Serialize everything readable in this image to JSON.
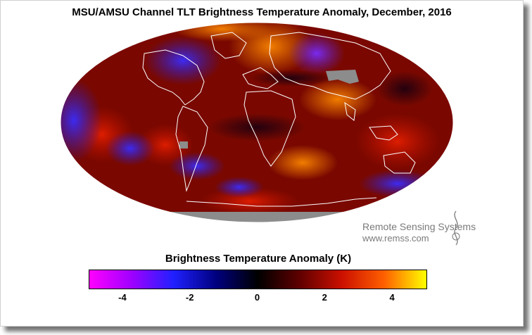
{
  "title": "MSU/AMSU Channel TLT Brightness Temperature Anomaly, December, 2016",
  "logo": {
    "name": "Remote Sensing Systems",
    "url": "www.remss.com",
    "icon": "rss-swirl-logo"
  },
  "colorbar": {
    "title": "Brightness Temperature Anomaly (K)",
    "range": [
      -5,
      5
    ],
    "colors": [
      "#ff00ff",
      "#a000ff",
      "#2020ff",
      "#000080",
      "#000000",
      "#600000",
      "#cc1000",
      "#ff6000",
      "#ffff00"
    ],
    "ticks": [
      {
        "value": -4,
        "label": "-4"
      },
      {
        "value": -2,
        "label": "-2"
      },
      {
        "value": 0,
        "label": "0"
      },
      {
        "value": 2,
        "label": "2"
      },
      {
        "value": 4,
        "label": "4"
      }
    ]
  },
  "map": {
    "projection": "mollweide",
    "no_data_color": "#8c8c8c",
    "coastline_color": "#ffffff"
  }
}
